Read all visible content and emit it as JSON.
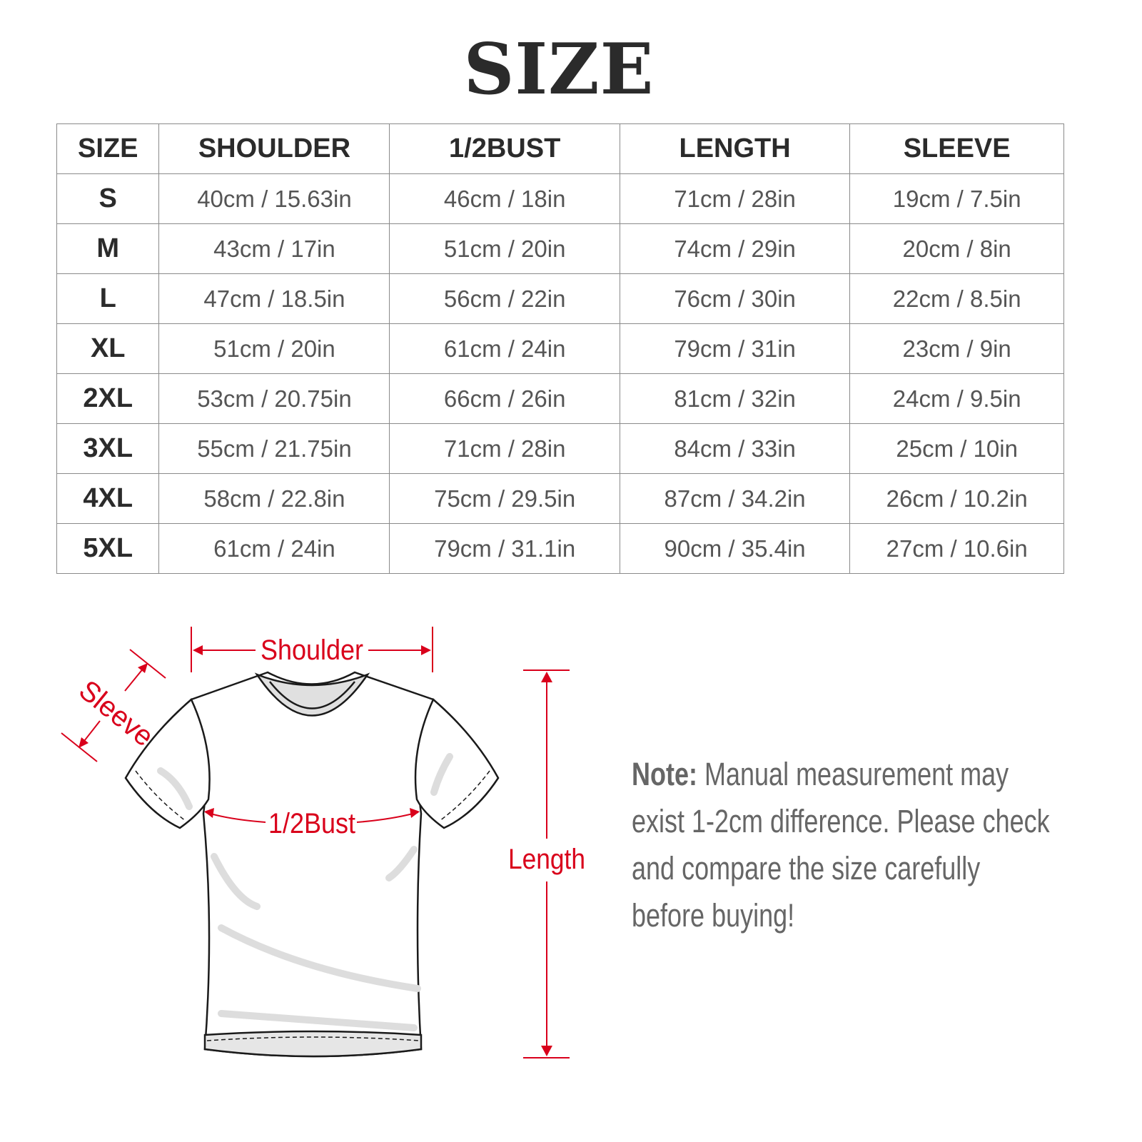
{
  "title": "SIZE",
  "table": {
    "headers": [
      "SIZE",
      "SHOULDER",
      "1/2BUST",
      "LENGTH",
      "SLEEVE"
    ],
    "rows": [
      [
        "S",
        "40cm / 15.63in",
        "46cm / 18in",
        "71cm / 28in",
        "19cm / 7.5in"
      ],
      [
        "M",
        "43cm / 17in",
        "51cm / 20in",
        "74cm / 29in",
        "20cm / 8in"
      ],
      [
        "L",
        "47cm / 18.5in",
        "56cm / 22in",
        "76cm / 30in",
        "22cm / 8.5in"
      ],
      [
        "XL",
        "51cm / 20in",
        "61cm / 24in",
        "79cm / 31in",
        "23cm / 9in"
      ],
      [
        "2XL",
        "53cm / 20.75in",
        "66cm / 26in",
        "81cm / 32in",
        "24cm / 9.5in"
      ],
      [
        "3XL",
        "55cm / 21.75in",
        "71cm / 28in",
        "84cm / 33in",
        "25cm / 10in"
      ],
      [
        "4XL",
        "58cm / 22.8in",
        "75cm / 29.5in",
        "87cm / 34.2in",
        "26cm / 10.2in"
      ],
      [
        "5XL",
        "61cm / 24in",
        "79cm / 31.1in",
        "90cm / 35.4in",
        "27cm / 10.6in"
      ]
    ]
  },
  "diagram": {
    "shoulder": "Shoulder",
    "sleeve": "Sleeve",
    "bust": "1/2Bust",
    "length": "Length",
    "accent_color": "#d9001b"
  },
  "note": {
    "label": "Note:",
    "text": " Manual measurement may exist 1-2cm difference. Please check and compare the size carefully before buying!"
  }
}
